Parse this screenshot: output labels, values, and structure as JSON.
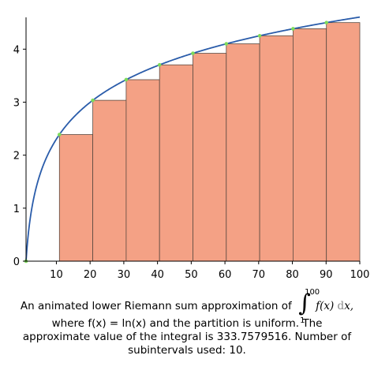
{
  "chart_data": {
    "type": "area",
    "function": "ln(x)",
    "method": "lower Riemann sum",
    "partition": "uniform",
    "interval": [
      1,
      100
    ],
    "subintervals": 10,
    "xlim": [
      1,
      100
    ],
    "ylim": [
      0,
      4.6
    ],
    "x_ticks": [
      10,
      20,
      30,
      40,
      50,
      60,
      70,
      80,
      90,
      100
    ],
    "y_ticks": [
      0,
      1,
      2,
      3,
      4
    ],
    "rectangles": [
      {
        "x0": 1.0,
        "x1": 10.9,
        "height": 0.0
      },
      {
        "x0": 10.9,
        "x1": 20.8,
        "height": 2.389
      },
      {
        "x0": 20.8,
        "x1": 30.7,
        "height": 3.035
      },
      {
        "x0": 30.7,
        "x1": 40.6,
        "height": 3.424
      },
      {
        "x0": 40.6,
        "x1": 50.5,
        "height": 3.704
      },
      {
        "x0": 50.5,
        "x1": 60.4,
        "height": 3.922
      },
      {
        "x0": 60.4,
        "x1": 70.3,
        "height": 4.101
      },
      {
        "x0": 70.3,
        "x1": 80.2,
        "height": 4.253
      },
      {
        "x0": 80.2,
        "x1": 90.1,
        "height": 4.385
      },
      {
        "x0": 90.1,
        "x1": 100.0,
        "height": 4.501
      }
    ],
    "colors": {
      "curve": "#2a5caa",
      "rect_fill": "#f4a185",
      "rect_edge": "#5a4a40",
      "points": "#7ddc5a",
      "axis": "#000000"
    },
    "grid": false
  },
  "caption": {
    "line1_before": "An animated lower Riemann sum approximation of",
    "integral_upper": "100",
    "integral_lower": "1",
    "integrand": "f(x)",
    "differential_d": "d",
    "differential_var": "x,",
    "line2": "where f(x) = ln(x) and the partition is uniform.  The",
    "line3": "approximate value of the integral is 333.7579516.  Number of",
    "line4": "subintervals used: 10."
  }
}
